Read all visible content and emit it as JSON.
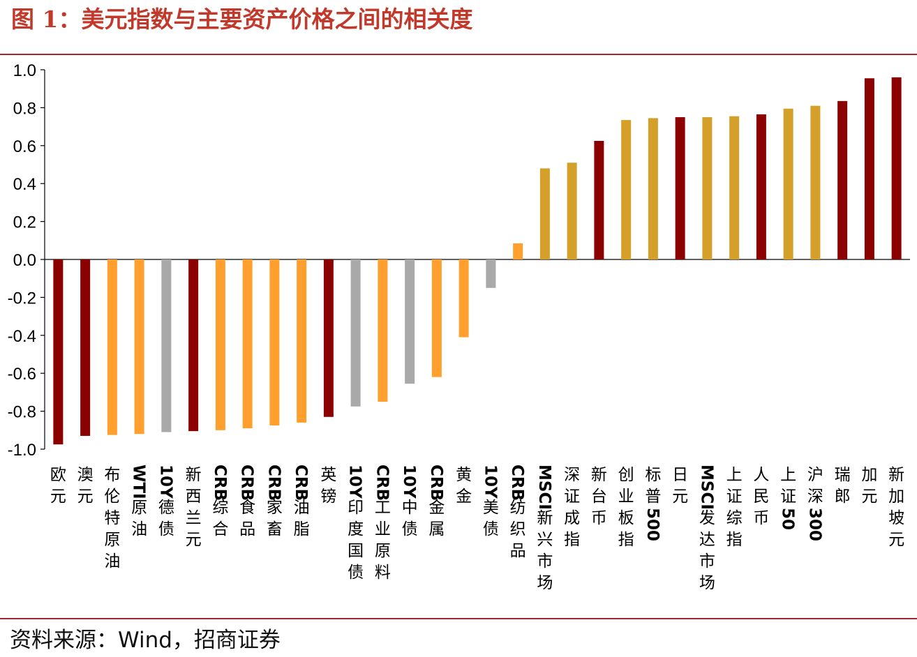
{
  "title": "图 1：美元指数与主要资产价格之间的相关度",
  "source": "资料来源：Wind，招商证券",
  "colors": {
    "dark_red": "#8b0000",
    "orange": "#ffa02e",
    "gray": "#a9a9a9",
    "gold": "#d4a02a",
    "rule": "#a0272d",
    "title": "#c0392b"
  },
  "chart_data": {
    "type": "bar",
    "title": "",
    "xlabel": "",
    "ylabel": "",
    "ylim": [
      -1.0,
      1.0
    ],
    "yticks": [
      "1.0",
      "0.8",
      "0.6",
      "0.4",
      "0.2",
      "0.0",
      "-0.2",
      "-0.4",
      "-0.6",
      "-0.8",
      "-1.0"
    ],
    "grid": false,
    "legend": "none",
    "categories": [
      "欧元",
      "澳元",
      "布伦特原油",
      "WTI原油",
      "10Y德债",
      "新西兰元",
      "CRB综合",
      "CRB食品",
      "CRB家畜",
      "CRB油脂",
      "英镑",
      "10Y印度国债",
      "CRB工业原料",
      "10Y中债",
      "CRB金属",
      "黄金",
      "10Y美债",
      "CRB纺织品",
      "MSCI新兴市场",
      "深证成指",
      "新台币",
      "创业板指",
      "标普500",
      "日元",
      "MSCI发达市场",
      "上证综指",
      "人民币",
      "上证50",
      "沪深300",
      "瑞郎",
      "加元",
      "新加坡元"
    ],
    "values": [
      -0.975,
      -0.93,
      -0.925,
      -0.92,
      -0.91,
      -0.905,
      -0.9,
      -0.89,
      -0.875,
      -0.86,
      -0.83,
      -0.775,
      -0.75,
      -0.655,
      -0.62,
      -0.41,
      -0.15,
      0.085,
      0.48,
      0.51,
      0.625,
      0.735,
      0.745,
      0.75,
      0.75,
      0.755,
      0.765,
      0.795,
      0.81,
      0.835,
      0.955,
      0.96
    ],
    "bar_colors": [
      "dark_red",
      "dark_red",
      "orange",
      "orange",
      "gray",
      "dark_red",
      "orange",
      "orange",
      "orange",
      "orange",
      "dark_red",
      "gray",
      "orange",
      "gray",
      "orange",
      "orange",
      "gray",
      "orange",
      "gold",
      "gold",
      "dark_red",
      "gold",
      "gold",
      "dark_red",
      "gold",
      "gold",
      "dark_red",
      "gold",
      "gold",
      "dark_red",
      "dark_red",
      "dark_red"
    ]
  }
}
